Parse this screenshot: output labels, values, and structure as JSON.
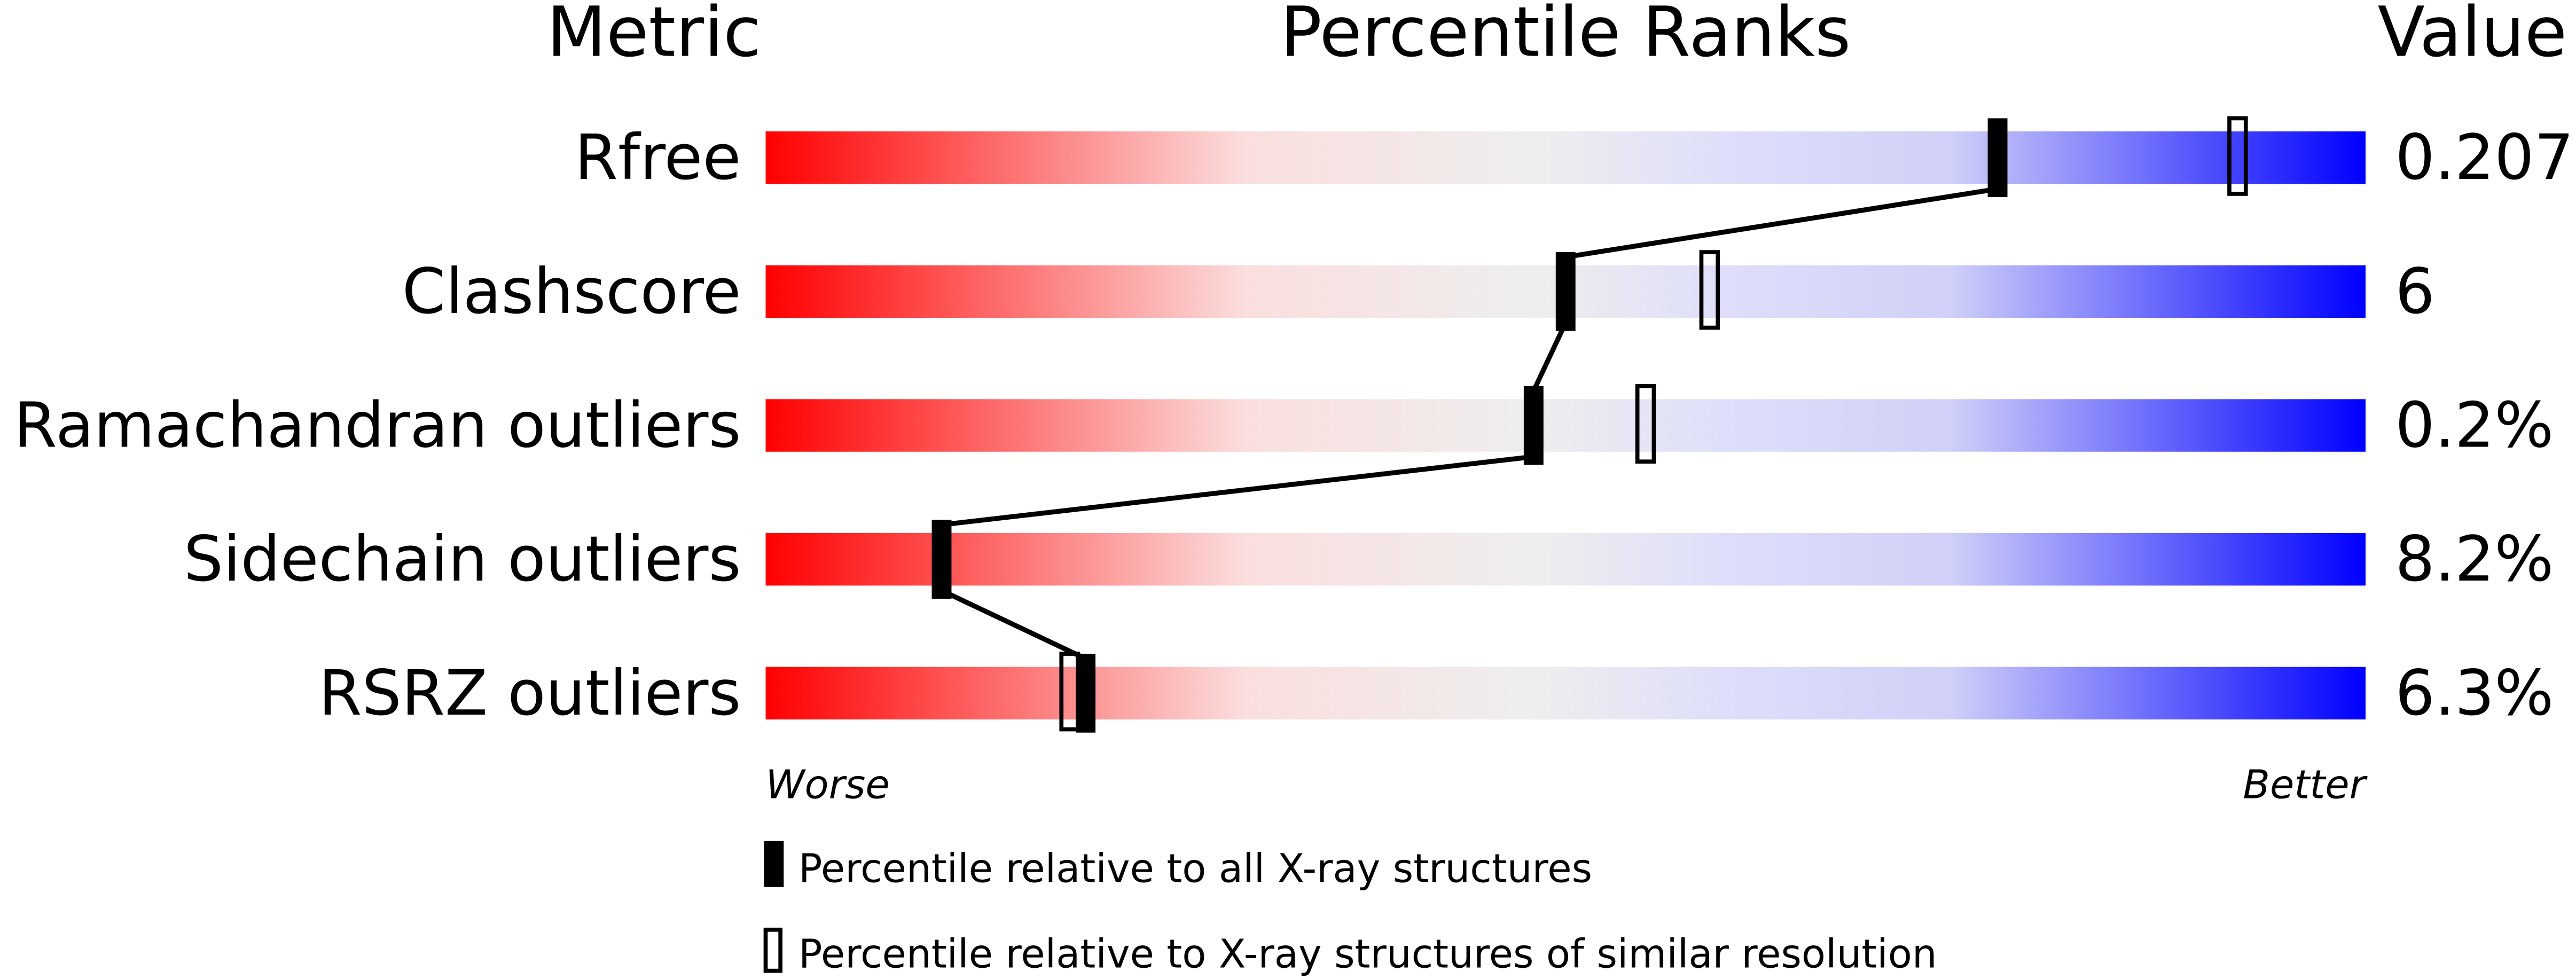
{
  "chart_data": {
    "type": "percentile-bar",
    "headers": {
      "metric": "Metric",
      "ranks": "Percentile Ranks",
      "value": "Value"
    },
    "xlim": [
      0,
      100
    ],
    "axis_ends": {
      "left": "Worse",
      "right": "Better"
    },
    "gradient_colors": [
      "#ff0000",
      "#fbdede",
      "#eeeeee",
      "#dcdcfa",
      "#0000ff"
    ],
    "metrics": [
      {
        "name": "Rfree",
        "value": "0.207",
        "percentile_all": 77,
        "percentile_similar": 92
      },
      {
        "name": "Clashscore",
        "value": "6",
        "percentile_all": 50,
        "percentile_similar": 59
      },
      {
        "name": "Ramachandran outliers",
        "value": "0.2%",
        "percentile_all": 48,
        "percentile_similar": 55
      },
      {
        "name": "Sidechain outliers",
        "value": "8.2%",
        "percentile_all": 11,
        "percentile_similar": null
      },
      {
        "name": "RSRZ outliers",
        "value": "6.3%",
        "percentile_all": 20,
        "percentile_similar": 19
      }
    ],
    "legend": [
      {
        "marker": "filled",
        "label": "Percentile relative to all X-ray structures"
      },
      {
        "marker": "open",
        "label": "Percentile relative to X-ray structures of similar resolution"
      }
    ]
  }
}
